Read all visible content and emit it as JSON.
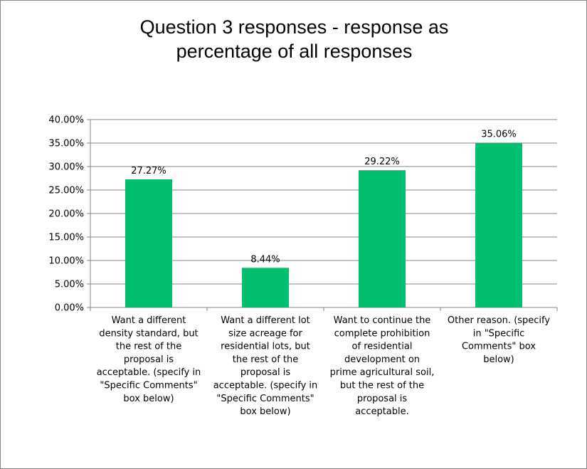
{
  "chart_data": {
    "type": "bar",
    "title": "Question 3 responses - response as\npercentage of all responses",
    "categories": [
      "Want a different density standard, but the rest of the proposal is acceptable. (specify in \"Specific Comments\" box below)",
      "Want a different lot size acreage for residential lots, but the rest of the proposal is acceptable. (specify in \"Specific Comments\" box below)",
      "Want to continue the complete prohibition of residential development on prime agricultural soil, but the rest of the proposal is acceptable.",
      "Other reason. (specify in \"Specific Comments\" box below)"
    ],
    "category_label_lines": [
      [
        "Want a different",
        "density standard, but",
        "the rest of the",
        "proposal is",
        "acceptable. (specify in",
        "\"Specific Comments\"",
        "box below)"
      ],
      [
        "Want a different lot",
        "size acreage for",
        "residential lots, but",
        "the rest of the",
        "proposal is",
        "acceptable. (specify in",
        "\"Specific Comments\"",
        "box below)"
      ],
      [
        "Want to continue the",
        "complete prohibition",
        "of residential",
        "development on",
        "prime agricultural soil,",
        "but the rest of the",
        "proposal is",
        "acceptable."
      ],
      [
        "Other reason. (specify",
        "in \"Specific",
        "Comments\" box",
        "below)"
      ]
    ],
    "values": [
      27.27,
      8.44,
      29.22,
      35.06
    ],
    "data_labels": [
      "27.27%",
      "8.44%",
      "29.22%",
      "35.06%"
    ],
    "ylim": [
      0,
      40
    ],
    "yticks": [
      0,
      5,
      10,
      15,
      20,
      25,
      30,
      35,
      40
    ],
    "ytick_labels": [
      "0.00%",
      "5.00%",
      "10.00%",
      "15.00%",
      "20.00%",
      "25.00%",
      "30.00%",
      "35.00%",
      "40.00%"
    ],
    "xlabel": "",
    "ylabel": "",
    "grid": true,
    "legend": "none",
    "colors": {
      "bar": "#00BF6F",
      "grid": "#868686",
      "axis": "#868686"
    }
  }
}
